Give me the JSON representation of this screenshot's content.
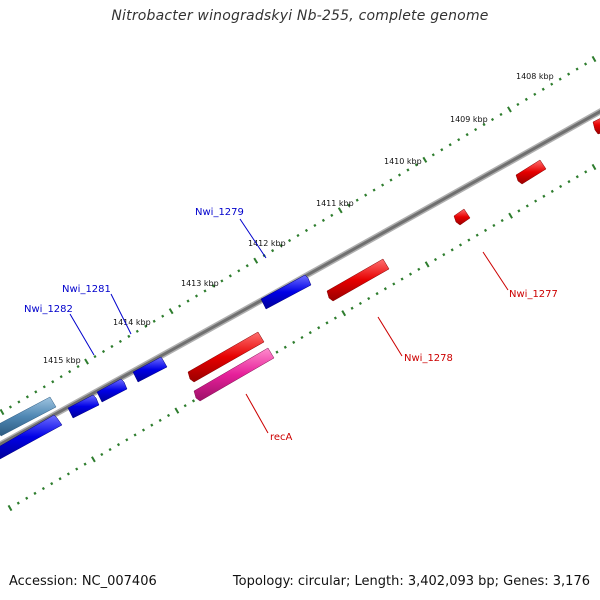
{
  "title": "Nitrobacter winogradskyi Nb-255, complete genome",
  "accession": "Accession: NC_007406",
  "summary": "Topology: circular; Length: 3,402,093 bp; Genes: 3,176",
  "colors": {
    "plus_strand": "#0000e6",
    "minus_strand": "#e60000",
    "rna": "#e6209a",
    "backbone": "#808080",
    "ticks": "#2e7d2e",
    "label_blue": "#0000cc",
    "label_red": "#cc0000"
  },
  "ticks": [
    {
      "label": "1408 kbp"
    },
    {
      "label": "1409 kbp"
    },
    {
      "label": "1410 kbp"
    },
    {
      "label": "1411 kbp"
    },
    {
      "label": "1412 kbp"
    },
    {
      "label": "1413 kbp"
    },
    {
      "label": "1414 kbp"
    },
    {
      "label": "1415 kbp"
    }
  ],
  "gene_labels": [
    {
      "id": "nwi1279",
      "text": "Nwi_1279",
      "strand": "plus"
    },
    {
      "id": "nwi1281",
      "text": "Nwi_1281",
      "strand": "plus"
    },
    {
      "id": "nwi1282",
      "text": "Nwi_1282",
      "strand": "plus"
    },
    {
      "id": "nwi1277",
      "text": "Nwi_1277",
      "strand": "minus"
    },
    {
      "id": "nwi1278",
      "text": "Nwi_1278",
      "strand": "minus"
    },
    {
      "id": "recA",
      "text": "recA",
      "strand": "minus"
    }
  ]
}
